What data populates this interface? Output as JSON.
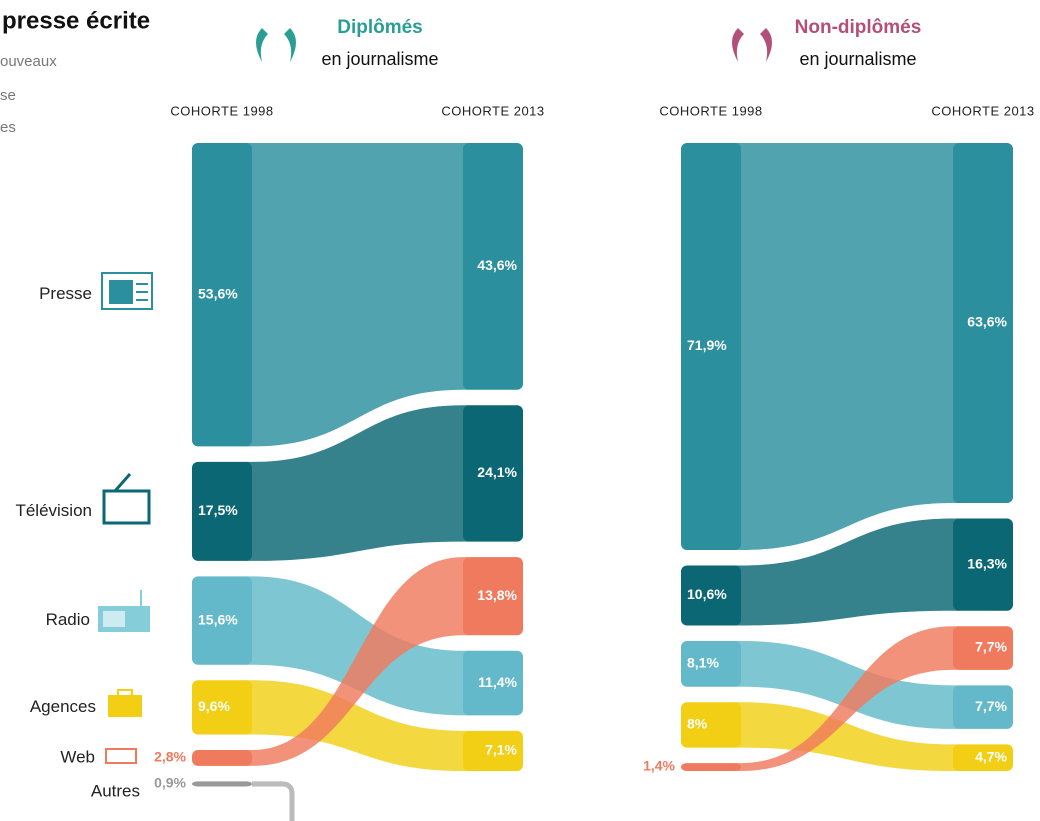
{
  "chart_data": {
    "type": "cohort-flow",
    "title": "presse écrite",
    "subtitle": [
      "ouveaux",
      "se",
      "es"
    ],
    "categories": [
      "Presse",
      "Télévision",
      "Radio",
      "Agences",
      "Web",
      "Autres"
    ],
    "colors": [
      "#2b8f9e",
      "#0a6773",
      "#63b9c9",
      "#f2cf15",
      "#f07a5e",
      "#999999"
    ],
    "panels": [
      {
        "title": "Diplômés",
        "subtitle": "en journalisme",
        "color": "#2a9e94",
        "series": [
          {
            "name": "COHORTE 1998",
            "values": [
              53.6,
              17.5,
              15.6,
              9.6,
              2.8,
              0.9
            ],
            "value_labels": [
              "53,6%",
              "17,5%",
              "15,6%",
              "9,6%",
              "2,8%",
              "0,9%"
            ]
          },
          {
            "name": "COHORTE 2013",
            "values": [
              43.6,
              24.1,
              11.4,
              7.1,
              13.8,
              null
            ],
            "value_labels": [
              "43,6%",
              "24,1%",
              "11,4%",
              "7,1%",
              "13,8%",
              null
            ]
          }
        ]
      },
      {
        "title": "Non-diplômés",
        "subtitle": "en journalisme",
        "color": "#b2507a",
        "series": [
          {
            "name": "COHORTE 1998",
            "values": [
              71.9,
              10.6,
              8.1,
              8,
              1.4,
              null
            ],
            "value_labels": [
              "71,9%",
              "10,6%",
              "8,1%",
              "8%",
              "1,4%",
              null
            ]
          },
          {
            "name": "COHORTE 2013",
            "values": [
              63.6,
              16.3,
              7.7,
              4.7,
              7.7,
              null
            ],
            "value_labels": [
              "63,6%",
              "16,3%",
              "7,7%",
              "4,7%",
              "7,7%",
              null
            ]
          }
        ]
      }
    ]
  }
}
